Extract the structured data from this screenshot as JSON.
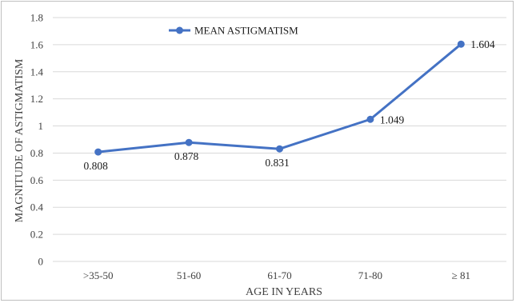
{
  "colors": {
    "series": "#4472c4",
    "grid": "#d9d9d9",
    "axis_text": "#404040",
    "frame": "#bfbfbf"
  },
  "chart_data": {
    "type": "line",
    "title": "",
    "xlabel": "AGE IN YEARS",
    "ylabel": "MAGNITUDE OF ASTIGMATISM",
    "categories": [
      ">35-50",
      "51-60",
      "61-70",
      "71-80",
      "≥ 81"
    ],
    "series": [
      {
        "name": "MEAN ASTIGMATISM",
        "values": [
          0.808,
          0.878,
          0.831,
          1.049,
          1.604
        ],
        "labels": [
          "0.808",
          "0.878",
          "0.831",
          "1.049",
          "1.604"
        ]
      }
    ],
    "ylim": [
      0,
      1.8
    ],
    "yticks": [
      "0",
      "0.2",
      "0.4",
      "0.6",
      "0.8",
      "1",
      "1.2",
      "1.4",
      "1.6",
      "1.8"
    ],
    "grid": true,
    "legend_position": "top-left"
  }
}
